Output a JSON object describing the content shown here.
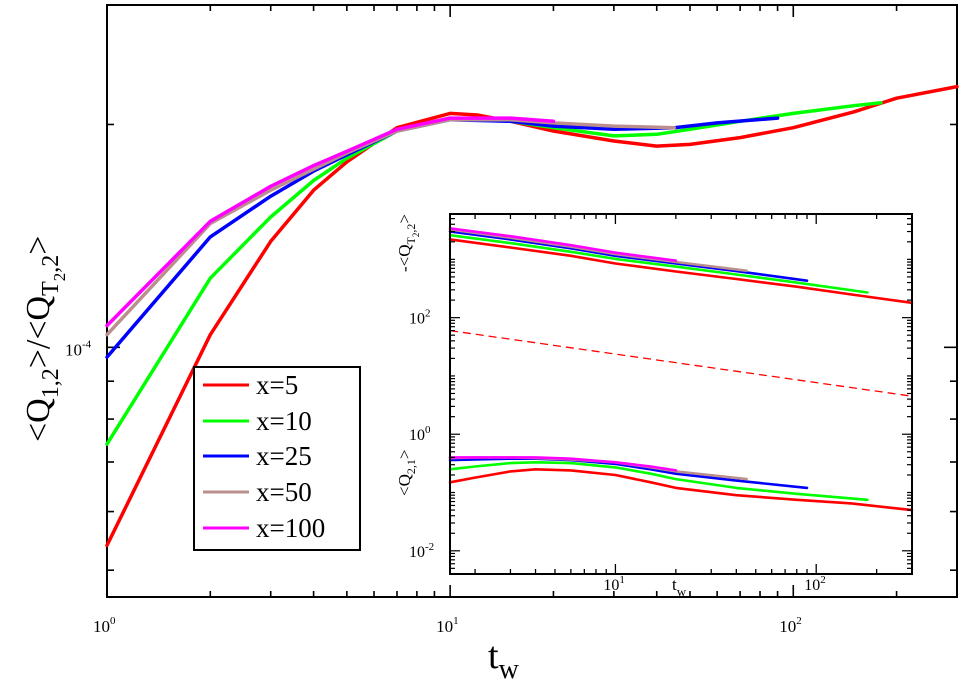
{
  "chart_data": {
    "type": "line",
    "xscale": "log",
    "yscale": "log",
    "xlim": [
      1,
      300
    ],
    "ylim": [
      4.6e-05,
      0.00029
    ],
    "x_tick_labels": [
      {
        "base": "10",
        "exp": "0"
      },
      {
        "base": "10",
        "exp": "1"
      },
      {
        "base": "10",
        "exp": "2"
      }
    ],
    "y_tick_labels": [
      {
        "base": "10",
        "exp": "-4"
      }
    ],
    "xlabel": {
      "main": "t",
      "sub": "w"
    },
    "ylabel": {
      "a": "<Q",
      "sub1": "1,2",
      "b": ">/<Q",
      "sub2": "T",
      "sub3": "2",
      "c": ",2",
      "d": ">"
    },
    "legend": {
      "placement": "lower-left",
      "entries": [
        {
          "label": "x=5",
          "color": "#ff0000"
        },
        {
          "label": "x=10",
          "color": "#00ff00"
        },
        {
          "label": "x=25",
          "color": "#0000ff"
        },
        {
          "label": "x=50",
          "color": "#bc8f8f"
        },
        {
          "label": "x=100",
          "color": "#ff00ff"
        }
      ]
    },
    "series": [
      {
        "name": "x=5",
        "color": "#ff0000",
        "points": [
          [
            1,
            5.4e-05
          ],
          [
            2,
            0.000104
          ],
          [
            3,
            0.000139
          ],
          [
            4,
            0.000163
          ],
          [
            5,
            0.000178
          ],
          [
            7,
            0.000198
          ],
          [
            10,
            0.000207
          ],
          [
            12,
            0.000206
          ],
          [
            15,
            0.000202
          ],
          [
            20,
            0.000196
          ],
          [
            30,
            0.00019
          ],
          [
            40,
            0.000187
          ],
          [
            50,
            0.000188
          ],
          [
            70,
            0.000192
          ],
          [
            100,
            0.000198
          ],
          [
            150,
            0.000208
          ],
          [
            200,
            0.000217
          ],
          [
            300,
            0.000225
          ]
        ]
      },
      {
        "name": "x=10",
        "color": "#00ff00",
        "points": [
          [
            1,
            7.4e-05
          ],
          [
            2,
            0.000124
          ],
          [
            3,
            0.00015
          ],
          [
            4,
            0.000168
          ],
          [
            5,
            0.00018
          ],
          [
            7,
            0.000196
          ],
          [
            10,
            0.000204
          ],
          [
            15,
            0.000202
          ],
          [
            20,
            0.000198
          ],
          [
            30,
            0.000193
          ],
          [
            40,
            0.000194
          ],
          [
            50,
            0.000197
          ],
          [
            70,
            0.000202
          ],
          [
            100,
            0.000207
          ],
          [
            150,
            0.000212
          ],
          [
            180,
            0.000214
          ]
        ]
      },
      {
        "name": "x=25",
        "color": "#0000ff",
        "points": [
          [
            1,
            9.7e-05
          ],
          [
            2,
            0.000141
          ],
          [
            3,
            0.00016
          ],
          [
            4,
            0.000173
          ],
          [
            5,
            0.000182
          ],
          [
            7,
            0.000196
          ],
          [
            10,
            0.000203
          ],
          [
            15,
            0.000202
          ],
          [
            20,
            0.000199
          ],
          [
            30,
            0.000197
          ],
          [
            45,
            0.000198
          ],
          [
            60,
            0.000201
          ],
          [
            90,
            0.000204
          ]
        ]
      },
      {
        "name": "x=50",
        "color": "#bc8f8f",
        "points": [
          [
            1,
            0.000104
          ],
          [
            2,
            0.000147
          ],
          [
            3,
            0.000163
          ],
          [
            4,
            0.000174
          ],
          [
            5,
            0.000183
          ],
          [
            7,
            0.000196
          ],
          [
            10,
            0.000203
          ],
          [
            15,
            0.000203
          ],
          [
            20,
            0.000201
          ],
          [
            30,
            0.000199
          ],
          [
            45,
            0.000198
          ]
        ]
      },
      {
        "name": "x=100",
        "color": "#ff00ff",
        "points": [
          [
            1,
            0.000107
          ],
          [
            2,
            0.000148
          ],
          [
            3,
            0.000165
          ],
          [
            4,
            0.000176
          ],
          [
            5,
            0.000184
          ],
          [
            7,
            0.000197
          ],
          [
            10,
            0.000204
          ],
          [
            15,
            0.000204
          ],
          [
            20,
            0.000202
          ]
        ]
      }
    ],
    "inset": {
      "type": "line",
      "xscale": "log",
      "yscale": "log",
      "xlim": [
        1.5,
        300
      ],
      "ylim": [
        0.004,
        6000
      ],
      "x_tick_labels": [
        {
          "base": "10",
          "exp": "1"
        },
        {
          "base": "10",
          "exp": "2"
        }
      ],
      "y_tick_labels": [
        {
          "base": "10",
          "exp": "-2"
        },
        {
          "base": "10",
          "exp": "0"
        },
        {
          "base": "10",
          "exp": "2"
        }
      ],
      "xlabel": {
        "main": "t",
        "sub": "w"
      },
      "upper_label": {
        "a": "-<Q",
        "sub1": "T",
        "sub2": "2",
        "b": ",2",
        "c": ">"
      },
      "lower_label": {
        "a": "<Q",
        "sub1": "2,1",
        "b": ">"
      },
      "reference_line": {
        "style": "dashed",
        "color": "#ff0000",
        "points": [
          [
            1.5,
            60
          ],
          [
            300,
            4.5
          ]
        ]
      },
      "series": [
        {
          "name": "x=5 upper",
          "color": "#ff0000",
          "points": [
            [
              1.5,
              2200
            ],
            [
              3,
              1600
            ],
            [
              6,
              1150
            ],
            [
              10,
              850
            ],
            [
              20,
              620
            ],
            [
              40,
              460
            ],
            [
              80,
              340
            ],
            [
              150,
              250
            ],
            [
              300,
              180
            ]
          ]
        },
        {
          "name": "x=10 upper",
          "color": "#00ff00",
          "points": [
            [
              1.5,
              2600
            ],
            [
              3,
              1900
            ],
            [
              6,
              1350
            ],
            [
              10,
              1020
            ],
            [
              20,
              750
            ],
            [
              40,
              550
            ],
            [
              80,
              400
            ],
            [
              180,
              270
            ]
          ]
        },
        {
          "name": "x=25 upper",
          "color": "#0000ff",
          "points": [
            [
              1.5,
              3000
            ],
            [
              3,
              2200
            ],
            [
              6,
              1550
            ],
            [
              10,
              1150
            ],
            [
              20,
              850
            ],
            [
              40,
              630
            ],
            [
              90,
              430
            ]
          ]
        },
        {
          "name": "x=50 upper",
          "color": "#bc8f8f",
          "points": [
            [
              1.5,
              3250
            ],
            [
              3,
              2350
            ],
            [
              6,
              1650
            ],
            [
              10,
              1230
            ],
            [
              20,
              900
            ],
            [
              45,
              640
            ]
          ]
        },
        {
          "name": "x=100 upper",
          "color": "#ff00ff",
          "points": [
            [
              1.5,
              3400
            ],
            [
              3,
              2500
            ],
            [
              6,
              1750
            ],
            [
              10,
              1300
            ],
            [
              20,
              950
            ]
          ]
        },
        {
          "name": "x=5 lower",
          "color": "#ff0000",
          "points": [
            [
              1.5,
              0.15
            ],
            [
              2,
              0.18
            ],
            [
              3,
              0.23
            ],
            [
              4,
              0.25
            ],
            [
              6,
              0.24
            ],
            [
              10,
              0.2
            ],
            [
              15,
              0.15
            ],
            [
              20,
              0.12
            ],
            [
              40,
              0.09
            ],
            [
              80,
              0.075
            ],
            [
              150,
              0.065
            ],
            [
              300,
              0.05
            ]
          ]
        },
        {
          "name": "x=10 lower",
          "color": "#00ff00",
          "points": [
            [
              1.5,
              0.25
            ],
            [
              2,
              0.28
            ],
            [
              3,
              0.32
            ],
            [
              4,
              0.33
            ],
            [
              6,
              0.32
            ],
            [
              10,
              0.27
            ],
            [
              15,
              0.21
            ],
            [
              20,
              0.17
            ],
            [
              40,
              0.12
            ],
            [
              80,
              0.095
            ],
            [
              180,
              0.075
            ]
          ]
        },
        {
          "name": "x=25 lower",
          "color": "#0000ff",
          "points": [
            [
              1.5,
              0.36
            ],
            [
              2,
              0.37
            ],
            [
              3,
              0.38
            ],
            [
              4,
              0.38
            ],
            [
              6,
              0.36
            ],
            [
              10,
              0.31
            ],
            [
              15,
              0.25
            ],
            [
              20,
              0.21
            ],
            [
              40,
              0.16
            ],
            [
              90,
              0.12
            ]
          ]
        },
        {
          "name": "x=50 lower",
          "color": "#bc8f8f",
          "points": [
            [
              1.5,
              0.39
            ],
            [
              2,
              0.4
            ],
            [
              3,
              0.4
            ],
            [
              4,
              0.39
            ],
            [
              6,
              0.37
            ],
            [
              10,
              0.33
            ],
            [
              15,
              0.27
            ],
            [
              20,
              0.23
            ],
            [
              45,
              0.17
            ]
          ]
        },
        {
          "name": "x=100 lower",
          "color": "#ff00ff",
          "points": [
            [
              1.5,
              0.4
            ],
            [
              2,
              0.4
            ],
            [
              3,
              0.4
            ],
            [
              4,
              0.4
            ],
            [
              6,
              0.38
            ],
            [
              10,
              0.33
            ],
            [
              15,
              0.28
            ],
            [
              20,
              0.24
            ]
          ]
        }
      ]
    }
  }
}
